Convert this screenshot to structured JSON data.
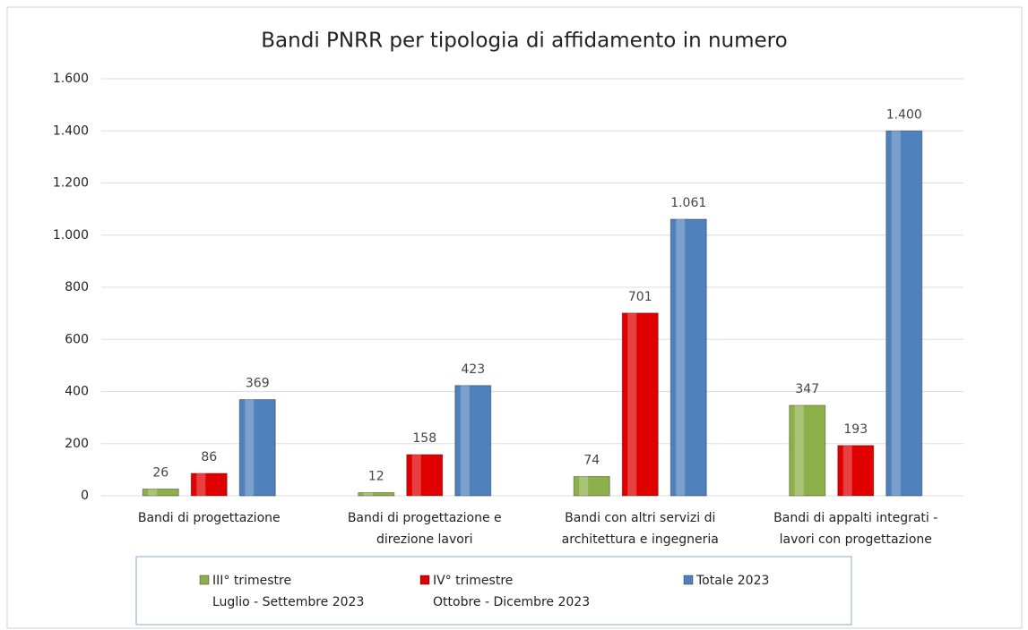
{
  "chart_data": {
    "type": "bar",
    "title": "Bandi PNRR per tipologia di affidamento in numero",
    "categories": [
      [
        "Bandi di progettazione"
      ],
      [
        "Bandi di progettazione e",
        "direzione lavori"
      ],
      [
        "Bandi con altri servizi di",
        "architettura e ingegneria"
      ],
      [
        "Bandi di appalti integrati -",
        "lavori con progettazione"
      ]
    ],
    "series": [
      {
        "name": "III° trimestre",
        "period": "Luglio - Settembre 2023",
        "color": "#8db04a",
        "values": [
          26,
          12,
          74,
          347
        ]
      },
      {
        "name": "IV° trimestre",
        "period": "Ottobre - Dicembre 2023",
        "color": "#e00000",
        "values": [
          86,
          158,
          701,
          193
        ]
      },
      {
        "name": "Totale 2023",
        "color": "#4f81bd",
        "values": [
          369,
          423,
          1061,
          1400
        ],
        "value_labels": [
          "369",
          "423",
          "1.061",
          "1.400"
        ]
      }
    ],
    "ylim": [
      0,
      1600
    ],
    "yticks": [
      0,
      200,
      400,
      600,
      800,
      {
        "value": 1000,
        "label": "1.000"
      },
      {
        "value": 1200,
        "label": "1.200"
      },
      {
        "value": 1400,
        "label": "1.400"
      },
      {
        "value": 1600,
        "label": "1.600"
      }
    ],
    "grid": true,
    "legend": "bottom"
  }
}
